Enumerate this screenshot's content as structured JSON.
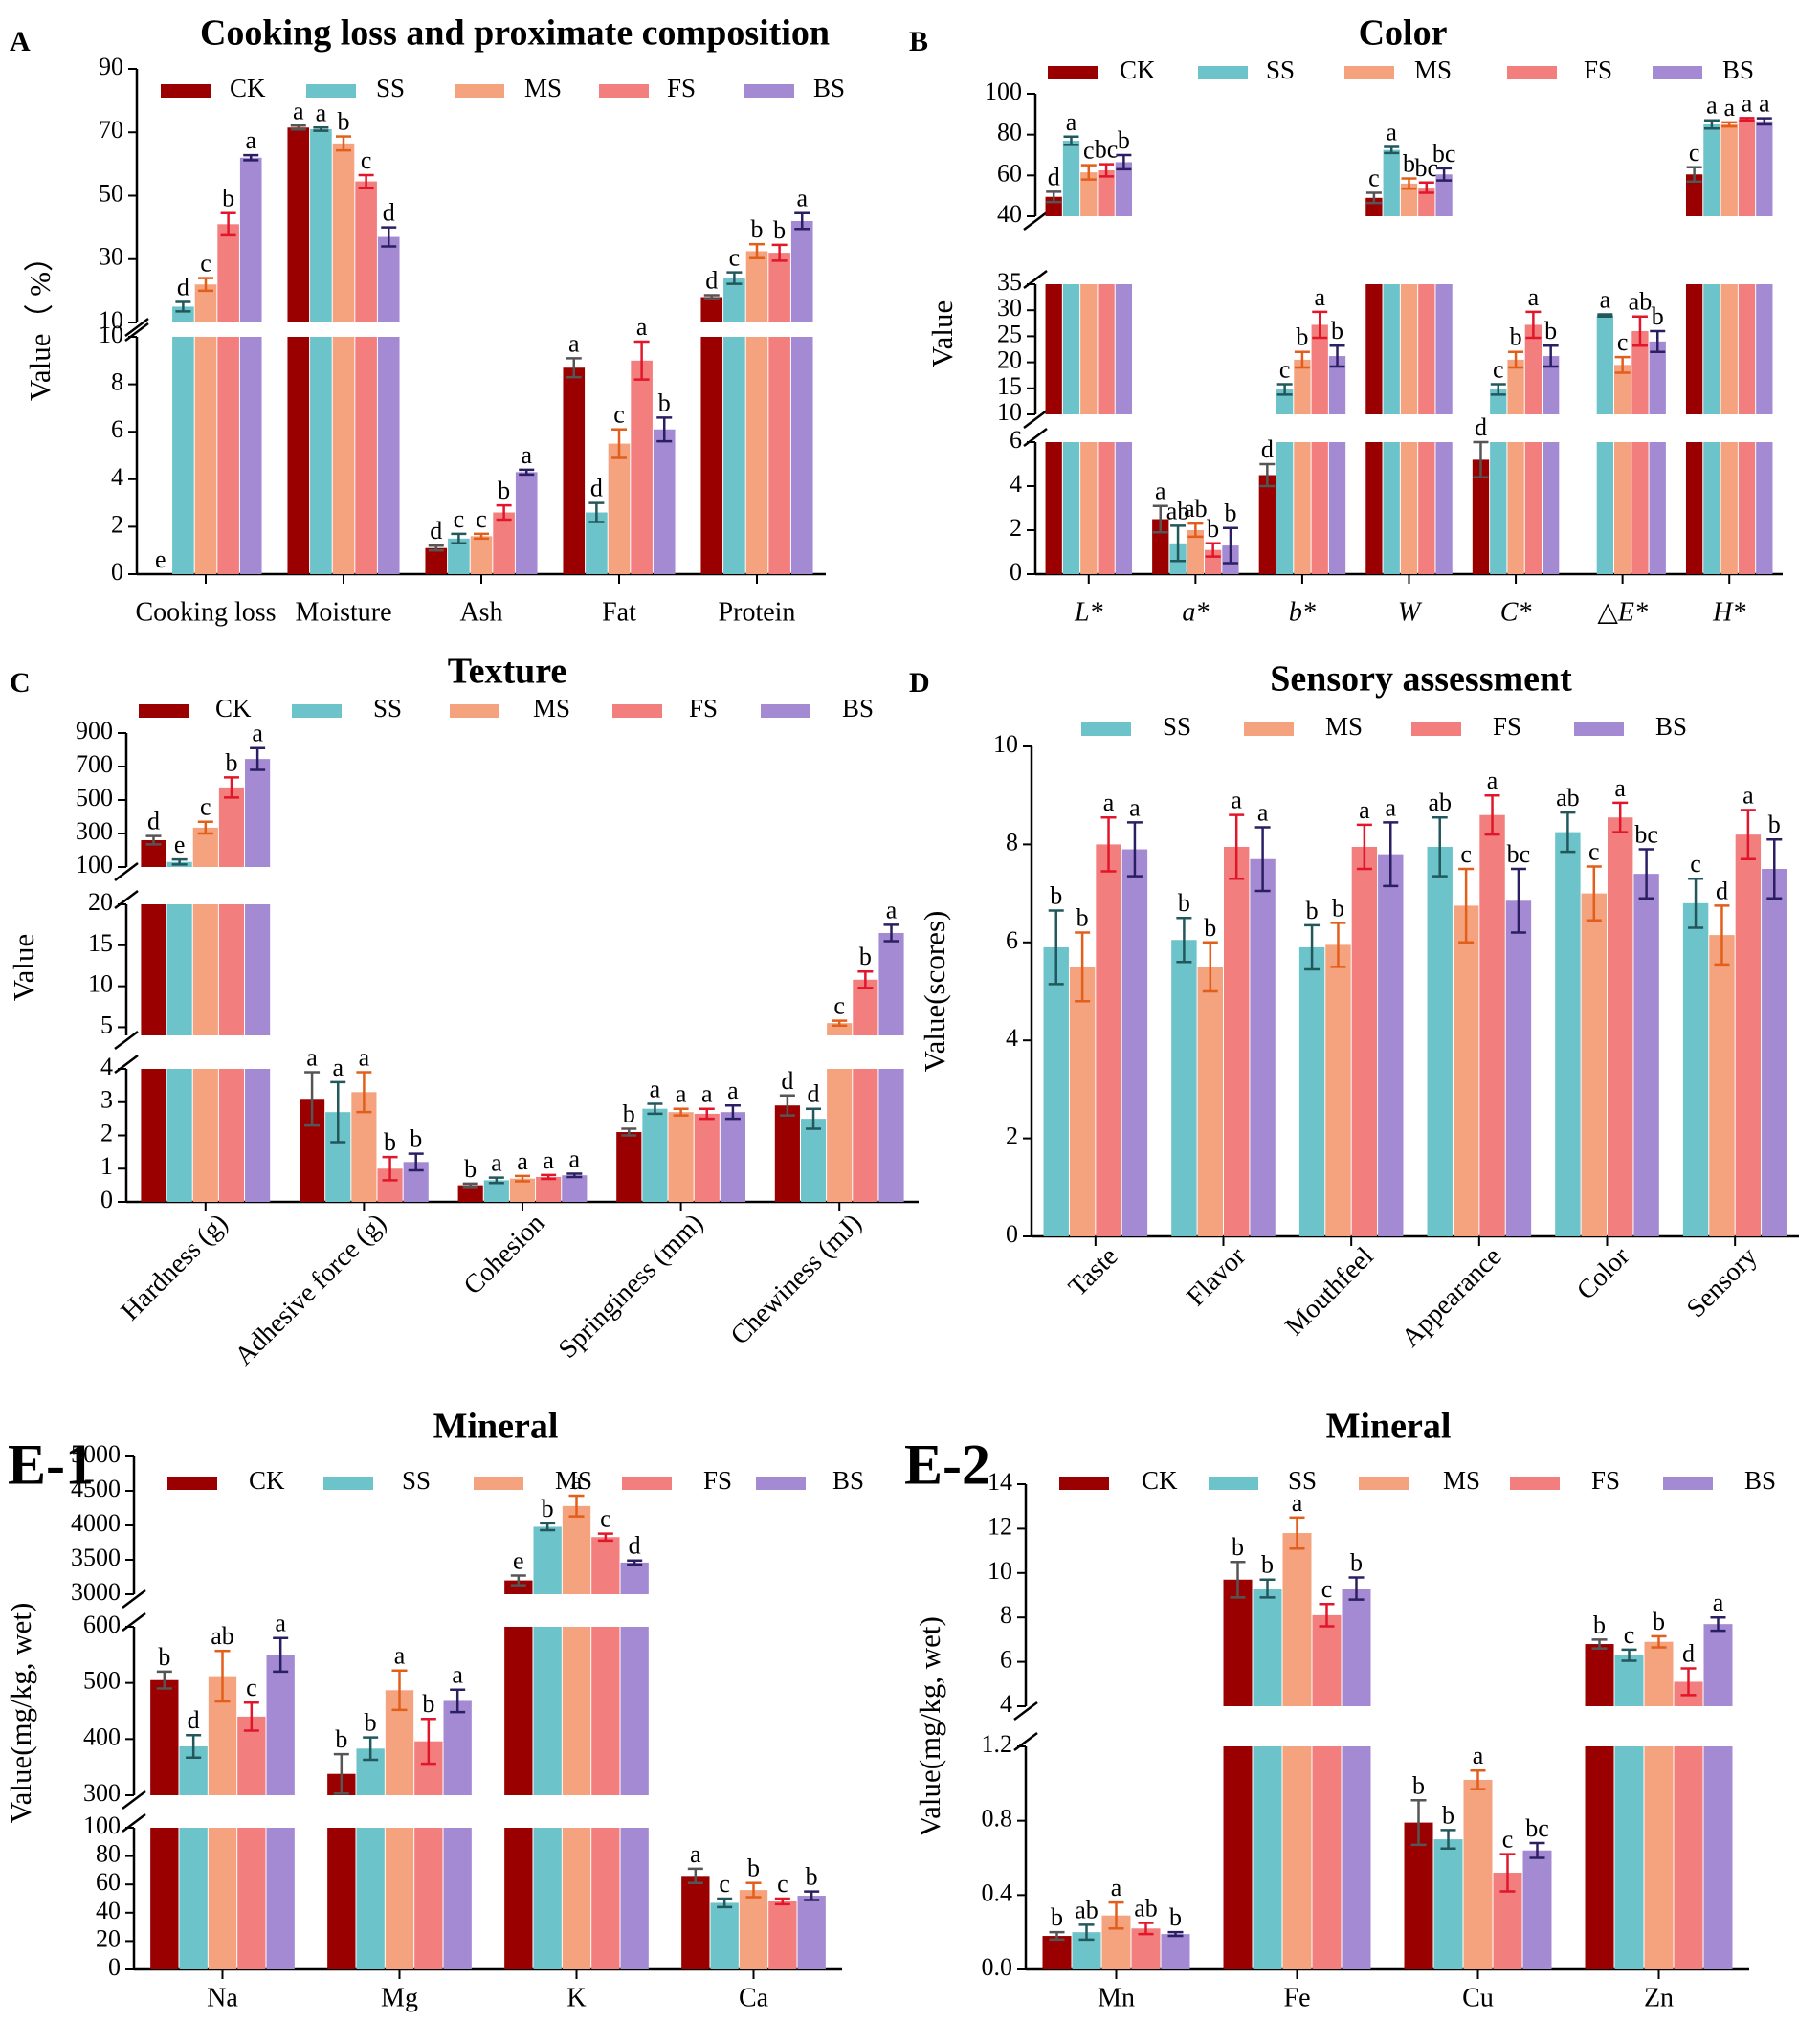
{
  "colors": {
    "CK": "#9a0000",
    "SS": "#6cc3c9",
    "MS": "#f5a27e",
    "FS": "#f37e7e",
    "BS": "#a48ad3",
    "text": "#000000",
    "axis": "#000000"
  },
  "err_colors": {
    "CK": "#555555",
    "SS": "#22575c",
    "MS": "#e25e1b",
    "FS": "#e2162a",
    "BS": "#2b1f63"
  },
  "chart_data": [
    {
      "panel": "A",
      "label": "A",
      "type": "bar",
      "title": "Cooking loss and proximate composition",
      "ylabel": "Value（ %）",
      "categories": [
        "Cooking loss",
        "Moisture",
        "Ash",
        "Fat",
        "Protein"
      ],
      "series_names": [
        "CK",
        "SS",
        "MS",
        "FS",
        "BS"
      ],
      "series": [
        {
          "name": "CK",
          "values": [
            0,
            71.5,
            1.1,
            8.7,
            18.0
          ],
          "err": [
            0,
            0.6,
            0.1,
            0.4,
            0.6
          ],
          "letters": [
            "e",
            "a",
            "d",
            "a",
            "d"
          ]
        },
        {
          "name": "SS",
          "values": [
            15.0,
            71.0,
            1.5,
            2.6,
            24.0
          ],
          "err": [
            1.5,
            0.5,
            0.2,
            0.4,
            1.8
          ],
          "letters": [
            "d",
            "a",
            "c",
            "d",
            "c"
          ]
        },
        {
          "name": "MS",
          "values": [
            22.0,
            66.5,
            1.6,
            5.5,
            32.5
          ],
          "err": [
            2.0,
            2.2,
            0.1,
            0.6,
            2.2
          ],
          "letters": [
            "c",
            "b",
            "c",
            "c",
            "b"
          ]
        },
        {
          "name": "FS",
          "values": [
            41.0,
            54.5,
            2.6,
            9.0,
            32.0
          ],
          "err": [
            3.5,
            2.0,
            0.3,
            0.8,
            2.5
          ],
          "letters": [
            "b",
            "c",
            "b",
            "a",
            "b"
          ]
        },
        {
          "name": "BS",
          "values": [
            62.0,
            37.0,
            4.3,
            6.1,
            42.0
          ],
          "err": [
            0.8,
            3.0,
            0.1,
            0.5,
            2.5
          ],
          "letters": [
            "a",
            "d",
            "a",
            "b",
            "a"
          ]
        }
      ],
      "segments": [
        {
          "ylim": [
            0,
            10
          ],
          "ticks": [
            0,
            2,
            4,
            6,
            8,
            10
          ]
        },
        {
          "ylim": [
            10,
            90
          ],
          "ticks": [
            10,
            30,
            50,
            70,
            90
          ]
        }
      ]
    },
    {
      "panel": "B",
      "label": "B",
      "type": "bar",
      "title": "Color",
      "ylabel": "Value",
      "categories": [
        "L*",
        "a*",
        "b*",
        "W",
        "C*",
        "△E*",
        "H*"
      ],
      "series_names": [
        "CK",
        "SS",
        "MS",
        "FS",
        "BS"
      ],
      "series": [
        {
          "name": "CK",
          "values": [
            49.5,
            2.5,
            4.5,
            49.0,
            5.2,
            null,
            60.5
          ],
          "err": [
            2.5,
            0.6,
            0.5,
            2.5,
            0.8,
            null,
            3.5
          ],
          "letters": [
            "d",
            "a",
            "d",
            "c",
            "d",
            "",
            "c"
          ]
        },
        {
          "name": "SS",
          "values": [
            77.0,
            1.4,
            14.8,
            72.5,
            14.8,
            29.0,
            85.0
          ],
          "err": [
            2.0,
            0.8,
            1.0,
            1.5,
            1.0,
            0.2,
            2.0
          ],
          "letters": [
            "a",
            "ab",
            "c",
            "a",
            "c",
            "a",
            "a"
          ]
        },
        {
          "name": "MS",
          "values": [
            61.5,
            2.0,
            20.5,
            56.0,
            20.5,
            19.5,
            85.0
          ],
          "err": [
            3.5,
            0.3,
            1.5,
            2.5,
            1.5,
            1.5,
            1.0
          ],
          "letters": [
            "c",
            "ab",
            "b",
            "b",
            "b",
            "c",
            "a"
          ]
        },
        {
          "name": "FS",
          "values": [
            62.5,
            1.1,
            27.2,
            54.0,
            27.2,
            26.0,
            87.5
          ],
          "err": [
            3.0,
            0.3,
            2.5,
            2.5,
            2.5,
            2.8,
            0.6
          ],
          "letters": [
            "bc",
            "b",
            "a",
            "bc",
            "a",
            "ab",
            "a"
          ]
        },
        {
          "name": "BS",
          "values": [
            66.5,
            1.3,
            21.2,
            60.5,
            21.2,
            24.0,
            86.5
          ],
          "err": [
            3.5,
            0.8,
            2.0,
            3.0,
            2.0,
            2.0,
            1.5
          ],
          "letters": [
            "b",
            "b",
            "b",
            "bc",
            "b",
            "b",
            "a"
          ]
        }
      ],
      "segments": [
        {
          "ylim": [
            0,
            6
          ],
          "ticks": [
            0,
            2,
            4,
            6
          ]
        },
        {
          "ylim": [
            10,
            35
          ],
          "ticks": [
            10,
            15,
            20,
            25,
            30,
            35
          ]
        },
        {
          "ylim": [
            40,
            100
          ],
          "ticks": [
            40,
            60,
            80,
            100
          ]
        }
      ]
    },
    {
      "panel": "C",
      "label": "C",
      "type": "bar",
      "title": "Texture",
      "ylabel": "Value",
      "categories": [
        "Hardness (g)",
        "Adhesive force (g)",
        "Cohesion",
        "Springiness (mm)",
        "Chewiness (mJ)"
      ],
      "series_names": [
        "CK",
        "SS",
        "MS",
        "FS",
        "BS"
      ],
      "series": [
        {
          "name": "CK",
          "values": [
            260,
            3.1,
            0.5,
            2.1,
            2.9
          ],
          "err": [
            25,
            0.8,
            0.05,
            0.1,
            0.3
          ],
          "letters": [
            "d",
            "a",
            "b",
            "b",
            "d"
          ]
        },
        {
          "name": "SS",
          "values": [
            130,
            2.7,
            0.65,
            2.8,
            2.5
          ],
          "err": [
            15,
            0.9,
            0.08,
            0.15,
            0.3
          ],
          "letters": [
            "e",
            "a",
            "a",
            "a",
            "d"
          ]
        },
        {
          "name": "MS",
          "values": [
            335,
            3.3,
            0.7,
            2.7,
            5.5
          ],
          "err": [
            35,
            0.6,
            0.08,
            0.1,
            0.3
          ],
          "letters": [
            "c",
            "a",
            "a",
            "a",
            "c"
          ]
        },
        {
          "name": "FS",
          "values": [
            575,
            1.0,
            0.75,
            2.65,
            10.8
          ],
          "err": [
            60,
            0.35,
            0.06,
            0.15,
            1.0
          ],
          "letters": [
            "b",
            "b",
            "a",
            "a",
            "b"
          ]
        },
        {
          "name": "BS",
          "values": [
            745,
            1.2,
            0.8,
            2.7,
            16.5
          ],
          "err": [
            65,
            0.25,
            0.05,
            0.2,
            1.0
          ],
          "letters": [
            "a",
            "b",
            "a",
            "a",
            "a"
          ]
        }
      ],
      "segments": [
        {
          "ylim": [
            0,
            4
          ],
          "ticks": [
            0,
            1,
            2,
            3,
            4
          ]
        },
        {
          "ylim": [
            4,
            20
          ],
          "ticks": [
            5,
            10,
            15,
            20
          ]
        },
        {
          "ylim": [
            100,
            900
          ],
          "ticks": [
            100,
            300,
            500,
            700,
            900
          ]
        }
      ]
    },
    {
      "panel": "D",
      "label": "D",
      "type": "bar",
      "title": "Sensory assessment",
      "ylabel": "Value(scores)",
      "categories": [
        "Taste",
        "Flavor",
        "Mouthfeel",
        "Appearance",
        "Color",
        "Sensory"
      ],
      "series_names": [
        "SS",
        "MS",
        "FS",
        "BS"
      ],
      "series": [
        {
          "name": "SS",
          "values": [
            5.9,
            6.05,
            5.9,
            7.95,
            8.25,
            6.8
          ],
          "err": [
            0.75,
            0.45,
            0.45,
            0.6,
            0.4,
            0.5
          ],
          "letters": [
            "b",
            "b",
            "b",
            "ab",
            "ab",
            "c"
          ]
        },
        {
          "name": "MS",
          "values": [
            5.5,
            5.5,
            5.95,
            6.75,
            7.0,
            6.15
          ],
          "err": [
            0.7,
            0.5,
            0.45,
            0.75,
            0.55,
            0.6
          ],
          "letters": [
            "b",
            "b",
            "b",
            "c",
            "c",
            "d"
          ]
        },
        {
          "name": "FS",
          "values": [
            8.0,
            7.95,
            7.95,
            8.6,
            8.55,
            8.2
          ],
          "err": [
            0.55,
            0.65,
            0.45,
            0.4,
            0.3,
            0.5
          ],
          "letters": [
            "a",
            "a",
            "a",
            "a",
            "a",
            "a"
          ]
        },
        {
          "name": "BS",
          "values": [
            7.9,
            7.7,
            7.8,
            6.85,
            7.4,
            7.5
          ],
          "err": [
            0.55,
            0.65,
            0.65,
            0.65,
            0.5,
            0.6
          ],
          "letters": [
            "a",
            "a",
            "a",
            "bc",
            "bc",
            "b"
          ]
        }
      ],
      "segments": [
        {
          "ylim": [
            0,
            10
          ],
          "ticks": [
            0,
            2,
            4,
            6,
            8,
            10
          ]
        }
      ]
    },
    {
      "panel": "E-1",
      "label": "E-1",
      "type": "bar",
      "title": "Mineral",
      "ylabel": "Value(mg/kg, wet)",
      "categories": [
        "Na",
        "Mg",
        "K",
        "Ca"
      ],
      "series_names": [
        "CK",
        "SS",
        "MS",
        "FS",
        "BS"
      ],
      "series": [
        {
          "name": "CK",
          "values": [
            505,
            338,
            3200,
            66
          ],
          "err": [
            15,
            35,
            70,
            5
          ],
          "letters": [
            "b",
            "b",
            "e",
            "a"
          ]
        },
        {
          "name": "SS",
          "values": [
            387,
            383,
            3980,
            47
          ],
          "err": [
            20,
            20,
            50,
            3
          ],
          "letters": [
            "d",
            "b",
            "b",
            "c"
          ]
        },
        {
          "name": "MS",
          "values": [
            512,
            487,
            4280,
            56
          ],
          "err": [
            45,
            35,
            150,
            5
          ],
          "letters": [
            "ab",
            "a",
            "a",
            "b"
          ]
        },
        {
          "name": "FS",
          "values": [
            440,
            396,
            3830,
            48
          ],
          "err": [
            25,
            40,
            50,
            2
          ],
          "letters": [
            "c",
            "b",
            "c",
            "c"
          ]
        },
        {
          "name": "BS",
          "values": [
            550,
            468,
            3460,
            52
          ],
          "err": [
            30,
            20,
            30,
            3
          ],
          "letters": [
            "a",
            "a",
            "d",
            "b"
          ]
        }
      ],
      "segments": [
        {
          "ylim": [
            0,
            100
          ],
          "ticks": [
            0,
            20,
            40,
            60,
            80,
            100
          ]
        },
        {
          "ylim": [
            300,
            600
          ],
          "ticks": [
            300,
            400,
            500,
            600
          ]
        },
        {
          "ylim": [
            3000,
            5000
          ],
          "ticks": [
            3000,
            3500,
            4000,
            4500,
            5000
          ]
        }
      ]
    },
    {
      "panel": "E-2",
      "label": "E-2",
      "type": "bar",
      "title": "Mineral",
      "ylabel": "Value(mg/kg, wet)",
      "categories": [
        "Mn",
        "Fe",
        "Cu",
        "Zn"
      ],
      "series_names": [
        "CK",
        "SS",
        "MS",
        "FS",
        "BS"
      ],
      "series": [
        {
          "name": "CK",
          "values": [
            0.18,
            9.7,
            0.79,
            6.8
          ],
          "err": [
            0.02,
            0.8,
            0.12,
            0.2
          ],
          "letters": [
            "b",
            "b",
            "b",
            "b"
          ]
        },
        {
          "name": "SS",
          "values": [
            0.2,
            9.3,
            0.7,
            6.3
          ],
          "err": [
            0.04,
            0.4,
            0.05,
            0.25
          ],
          "letters": [
            "ab",
            "b",
            "b",
            "c"
          ]
        },
        {
          "name": "MS",
          "values": [
            0.29,
            11.8,
            1.02,
            6.9
          ],
          "err": [
            0.07,
            0.7,
            0.05,
            0.25
          ],
          "letters": [
            "a",
            "a",
            "a",
            "b"
          ]
        },
        {
          "name": "FS",
          "values": [
            0.22,
            8.1,
            0.52,
            5.1
          ],
          "err": [
            0.03,
            0.5,
            0.1,
            0.6
          ],
          "letters": [
            "ab",
            "c",
            "c",
            "d"
          ]
        },
        {
          "name": "BS",
          "values": [
            0.19,
            9.3,
            0.64,
            7.7
          ],
          "err": [
            0.01,
            0.5,
            0.04,
            0.3
          ],
          "letters": [
            "b",
            "b",
            "bc",
            "a"
          ]
        }
      ],
      "segments": [
        {
          "ylim": [
            0,
            1.2
          ],
          "ticks": [
            0.0,
            0.4,
            0.8,
            1.2
          ],
          "tick_labels": [
            "0.0",
            "0.4",
            "0.8",
            "1.2"
          ]
        },
        {
          "ylim": [
            4,
            14
          ],
          "ticks": [
            4,
            6,
            8,
            10,
            12,
            14
          ]
        }
      ]
    }
  ]
}
